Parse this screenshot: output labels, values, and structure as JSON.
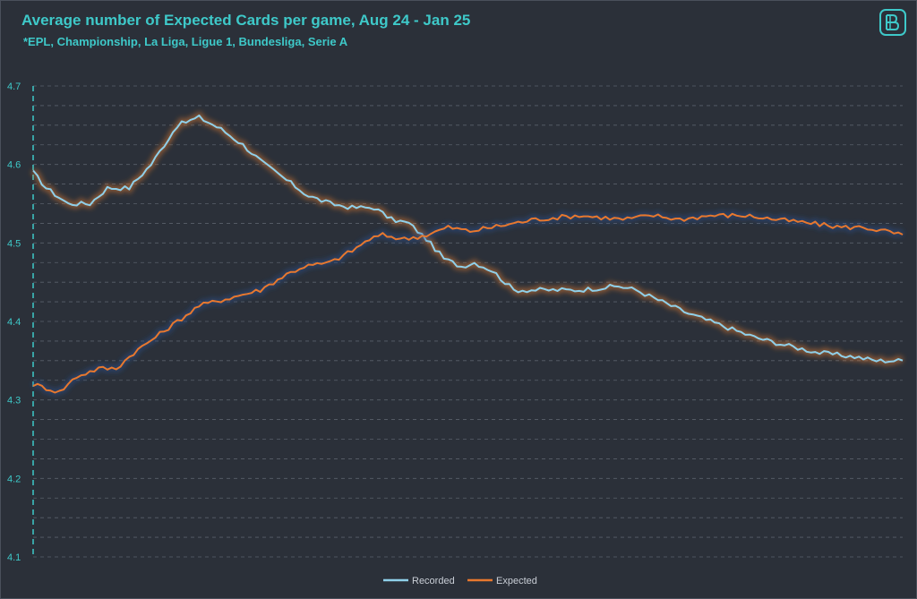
{
  "chart_data": {
    "type": "line",
    "title": "Average number of Expected Cards per game, Aug 24 - Jan 25",
    "subtitle": "*EPL, Championship,  La Liga, Ligue 1, Bundesliga, Serie A",
    "ylim": [
      4.1,
      4.7
    ],
    "y_ticks": [
      "4.7",
      "4.6",
      "4.5",
      "4.4",
      "4.3",
      "4.2",
      "4.1"
    ],
    "y_tick_values": [
      4.7,
      4.6,
      4.5,
      4.4,
      4.3,
      4.2,
      4.1
    ],
    "grid": "horizontal dashed",
    "legend_position": "bottom",
    "x_points": 200,
    "series": [
      {
        "name": "Recorded",
        "color": "#8fd0ea",
        "keypoints": [
          [
            0,
            4.59
          ],
          [
            3,
            4.57
          ],
          [
            8,
            4.55
          ],
          [
            13,
            4.55
          ],
          [
            17,
            4.57
          ],
          [
            22,
            4.57
          ],
          [
            27,
            4.6
          ],
          [
            33,
            4.65
          ],
          [
            38,
            4.66
          ],
          [
            43,
            4.645
          ],
          [
            48,
            4.625
          ],
          [
            53,
            4.6
          ],
          [
            58,
            4.58
          ],
          [
            63,
            4.56
          ],
          [
            68,
            4.55
          ],
          [
            73,
            4.545
          ],
          [
            78,
            4.545
          ],
          [
            82,
            4.53
          ],
          [
            86,
            4.525
          ],
          [
            90,
            4.505
          ],
          [
            94,
            4.48
          ],
          [
            98,
            4.47
          ],
          [
            101,
            4.475
          ],
          [
            105,
            4.465
          ],
          [
            110,
            4.44
          ],
          [
            115,
            4.44
          ],
          [
            125,
            4.44
          ],
          [
            134,
            4.445
          ],
          [
            138,
            4.44
          ],
          [
            144,
            4.425
          ],
          [
            150,
            4.41
          ],
          [
            155,
            4.4
          ],
          [
            160,
            4.39
          ],
          [
            165,
            4.38
          ],
          [
            172,
            4.37
          ],
          [
            180,
            4.36
          ],
          [
            188,
            4.355
          ],
          [
            193,
            4.35
          ],
          [
            199,
            4.35
          ]
        ]
      },
      {
        "name": "Expected",
        "color": "#e8782e",
        "keypoints": [
          [
            0,
            4.32
          ],
          [
            3,
            4.315
          ],
          [
            6,
            4.31
          ],
          [
            10,
            4.33
          ],
          [
            15,
            4.34
          ],
          [
            19,
            4.34
          ],
          [
            23,
            4.36
          ],
          [
            28,
            4.38
          ],
          [
            33,
            4.4
          ],
          [
            38,
            4.42
          ],
          [
            45,
            4.43
          ],
          [
            52,
            4.44
          ],
          [
            58,
            4.46
          ],
          [
            62,
            4.47
          ],
          [
            68,
            4.475
          ],
          [
            73,
            4.49
          ],
          [
            77,
            4.505
          ],
          [
            80,
            4.51
          ],
          [
            85,
            4.505
          ],
          [
            90,
            4.51
          ],
          [
            95,
            4.52
          ],
          [
            100,
            4.515
          ],
          [
            105,
            4.52
          ],
          [
            110,
            4.525
          ],
          [
            115,
            4.53
          ],
          [
            125,
            4.535
          ],
          [
            135,
            4.53
          ],
          [
            142,
            4.535
          ],
          [
            148,
            4.53
          ],
          [
            155,
            4.535
          ],
          [
            163,
            4.535
          ],
          [
            170,
            4.53
          ],
          [
            178,
            4.525
          ],
          [
            185,
            4.52
          ],
          [
            190,
            4.52
          ],
          [
            195,
            4.515
          ],
          [
            199,
            4.51
          ]
        ]
      }
    ]
  },
  "legend": {
    "recorded_label": "Recorded",
    "expected_label": "Expected"
  },
  "logo": {
    "icon": "bd-logo-icon",
    "color": "#3ec9c9"
  }
}
